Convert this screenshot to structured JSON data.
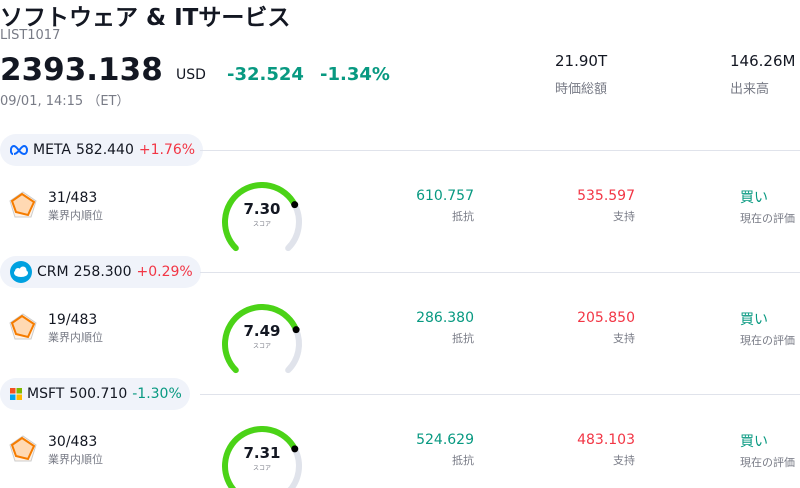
{
  "header": {
    "title": "ソフトウェア & ITサービス",
    "code": "LIST1017",
    "price": "2393.138",
    "currency": "USD",
    "change": "-32.524",
    "change_pct": "-1.34%",
    "time": "09/01, 14:15 （ET）"
  },
  "stats": [
    {
      "value": "21.90T",
      "label": "時価総額"
    },
    {
      "value": "146.26M",
      "label": "出来高"
    }
  ],
  "stocks": [
    {
      "ticker": "META",
      "price": "582.440",
      "change": "+1.76%",
      "rank": "31/483",
      "rank_label": "業界内順位",
      "score": "7.30",
      "score_label": "スコア",
      "resistance": "610.757",
      "resistance_label": "抵抗",
      "support": "535.597",
      "support_label": "支持",
      "rating": "買い",
      "rating_label": "現在の評価"
    },
    {
      "ticker": "CRM",
      "price": "258.300",
      "change": "+0.29%",
      "rank": "19/483",
      "rank_label": "業界内順位",
      "score": "7.49",
      "score_label": "スコア",
      "resistance": "286.380",
      "resistance_label": "抵抗",
      "support": "205.850",
      "support_label": "支持",
      "rating": "買い",
      "rating_label": "現在の評価"
    },
    {
      "ticker": "MSFT",
      "price": "500.710",
      "change": "-1.30%",
      "rank": "30/483",
      "rank_label": "業界内順位",
      "score": "7.31",
      "score_label": "スコア",
      "resistance": "524.629",
      "resistance_label": "抵抗",
      "support": "483.103",
      "support_label": "支持",
      "rating": "買い",
      "rating_label": "現在の評価"
    }
  ]
}
